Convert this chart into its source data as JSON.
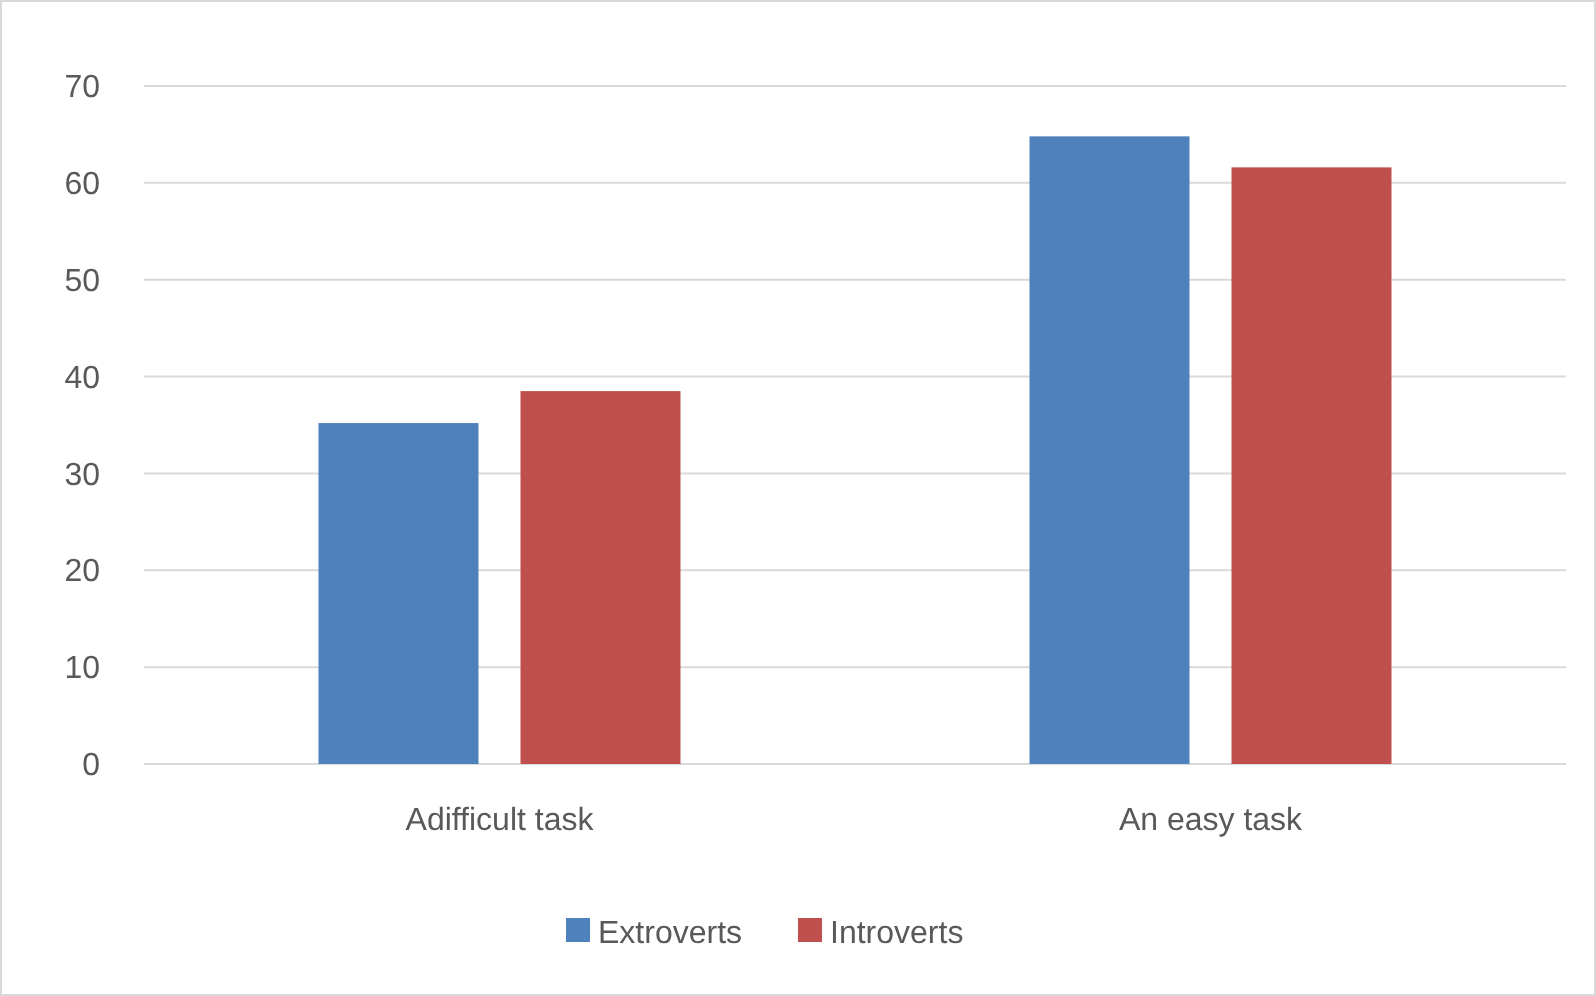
{
  "chart_data": {
    "type": "bar",
    "categories": [
      "Adifficult task",
      "An easy task"
    ],
    "series": [
      {
        "name": "Extroverts",
        "color": "#4f81bd",
        "values": [
          35.2,
          64.8
        ]
      },
      {
        "name": "Introverts",
        "color": "#c0504d",
        "values": [
          38.5,
          61.6
        ]
      }
    ],
    "ylim": [
      0,
      70
    ],
    "yticks": [
      0,
      10,
      20,
      30,
      40,
      50,
      60,
      70
    ],
    "grid": "y",
    "legend": "bottom"
  }
}
